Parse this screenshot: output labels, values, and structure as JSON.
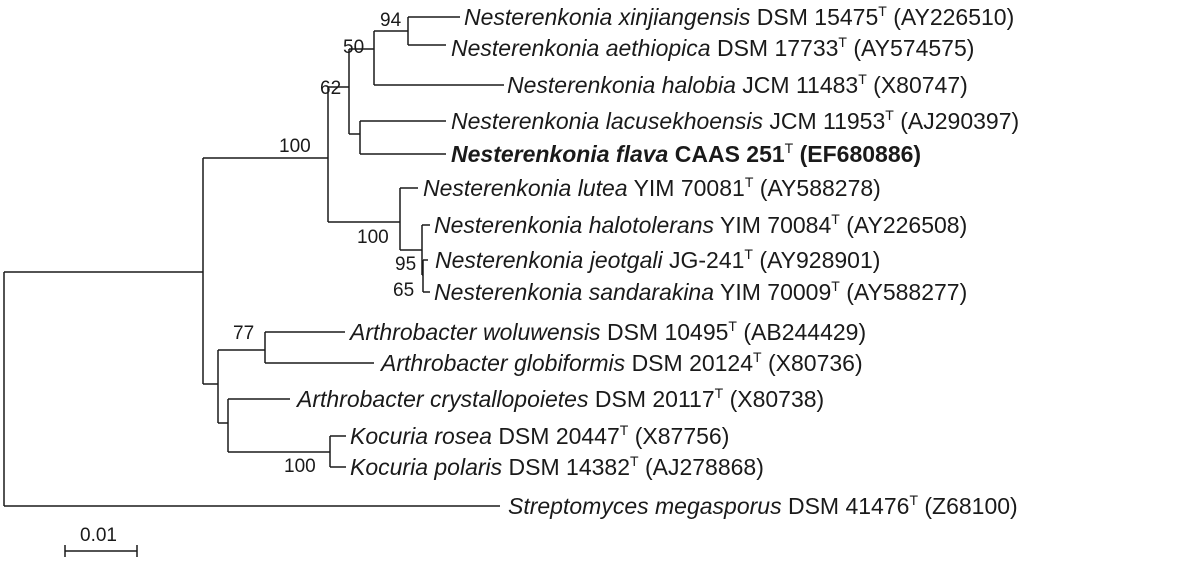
{
  "tree": {
    "taxa": [
      {
        "id": "xinjiangensis",
        "genus": "Nesterenkonia",
        "species": "xinjiangensis",
        "strain": "DSM 15475",
        "accession": "(AY226510)",
        "bold": false
      },
      {
        "id": "aethiopica",
        "genus": "Nesterenkonia",
        "species": "aethiopica",
        "strain": "DSM 17733",
        "accession": "(AY574575)",
        "bold": false
      },
      {
        "id": "halobia",
        "genus": "Nesterenkonia",
        "species": "halobia",
        "strain": "JCM 11483",
        "accession": "(X80747)",
        "bold": false
      },
      {
        "id": "lacusekhoensis",
        "genus": "Nesterenkonia",
        "species": "lacusekhoensis",
        "strain": "JCM 11953",
        "accession": "(AJ290397)",
        "bold": false
      },
      {
        "id": "flava",
        "genus": "Nesterenkonia",
        "species": "flava",
        "strain": "CAAS 251",
        "accession": "(EF680886)",
        "bold": true
      },
      {
        "id": "lutea",
        "genus": "Nesterenkonia",
        "species": "lutea",
        "strain": "YIM 70081",
        "accession": "(AY588278)",
        "bold": false
      },
      {
        "id": "halotolerans",
        "genus": "Nesterenkonia",
        "species": "halotolerans",
        "strain": "YIM 70084",
        "accession": "(AY226508)",
        "bold": false
      },
      {
        "id": "jeotgali",
        "genus": "Nesterenkonia",
        "species": "jeotgali",
        "strain": "JG-241",
        "accession": "(AY928901)",
        "bold": false
      },
      {
        "id": "sandarakina",
        "genus": "Nesterenkonia",
        "species": "sandarakina",
        "strain": "YIM 70009",
        "accession": "(AY588277)",
        "bold": false
      },
      {
        "id": "woluwensis",
        "genus": "Arthrobacter",
        "species": "woluwensis",
        "strain": "DSM 10495",
        "accession": "(AB244429)",
        "bold": false
      },
      {
        "id": "globiformis",
        "genus": "Arthrobacter",
        "species": "globiformis",
        "strain": "DSM 20124",
        "accession": "(X80736)",
        "bold": false
      },
      {
        "id": "crystallopoietes",
        "genus": "Arthrobacter",
        "species": "crystallopoietes",
        "strain": "DSM 20117",
        "accession": "(X80738)",
        "bold": false
      },
      {
        "id": "rosea",
        "genus": "Kocuria",
        "species": "rosea",
        "strain": "DSM 20447",
        "accession": "(X87756)",
        "bold": false
      },
      {
        "id": "polaris",
        "genus": "Kocuria",
        "species": "polaris",
        "strain": "DSM 14382",
        "accession": "(AJ278868)",
        "bold": false
      },
      {
        "id": "megasporus",
        "genus": "Streptomyces",
        "species": "megasporus",
        "strain": "DSM 41476",
        "accession": "(Z68100)",
        "bold": false
      }
    ],
    "type_strain_mark": "T",
    "bootstrap": [
      {
        "node": "xinjiangensis-aethiopica",
        "value": "94"
      },
      {
        "node": "xinjiangensis-halobia",
        "value": "50"
      },
      {
        "node": "halobia-flava",
        "value": "62"
      },
      {
        "node": "nesterenkonia",
        "value": "100"
      },
      {
        "node": "lutea-sandarakina",
        "value": "100"
      },
      {
        "node": "jeotgali-halotolerans",
        "value": "95"
      },
      {
        "node": "sandarakina-jeotgali",
        "value": "65"
      },
      {
        "node": "woluwensis-globiformis",
        "value": "77"
      },
      {
        "node": "rosea-polaris",
        "value": "100"
      }
    ],
    "scale_bar": {
      "label": "0.01",
      "substitutions": 0.01
    }
  }
}
